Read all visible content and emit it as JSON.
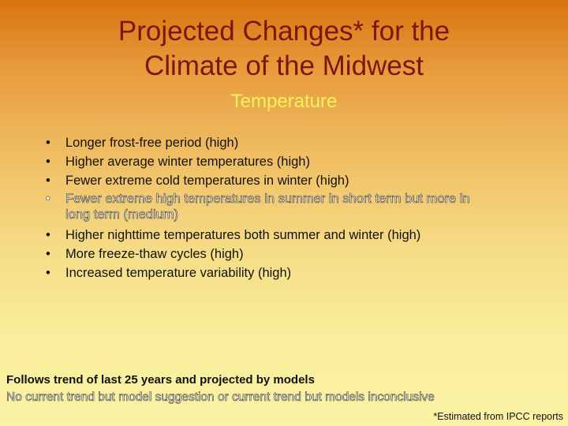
{
  "slide": {
    "title_line1": "Projected Changes* for the",
    "title_line2": "Climate of the Midwest",
    "subtitle": "Temperature",
    "bullet_char": "•",
    "bullets": [
      "Longer frost-free period (high)",
      "Higher average winter temperatures (high)",
      "Fewer extreme cold temperatures in winter (high)",
      "Fewer extreme high temperatures in summer in short term but more in long term (medium)",
      "Higher nighttime temperatures both summer and winter (high)",
      "More freeze-thaw cycles (high)",
      "Increased temperature variability (high)"
    ],
    "legend_solid": "Follows trend of last 25 years and projected by models",
    "legend_outlined": "No current trend but model suggestion or current trend but models inconclusive",
    "source_note": "*Estimated from IPCC reports",
    "colors": {
      "title": "#7a1710",
      "subtitle": "#f7f25a",
      "background_top": "#d9740f",
      "background_bottom": "#faf2a4"
    }
  }
}
